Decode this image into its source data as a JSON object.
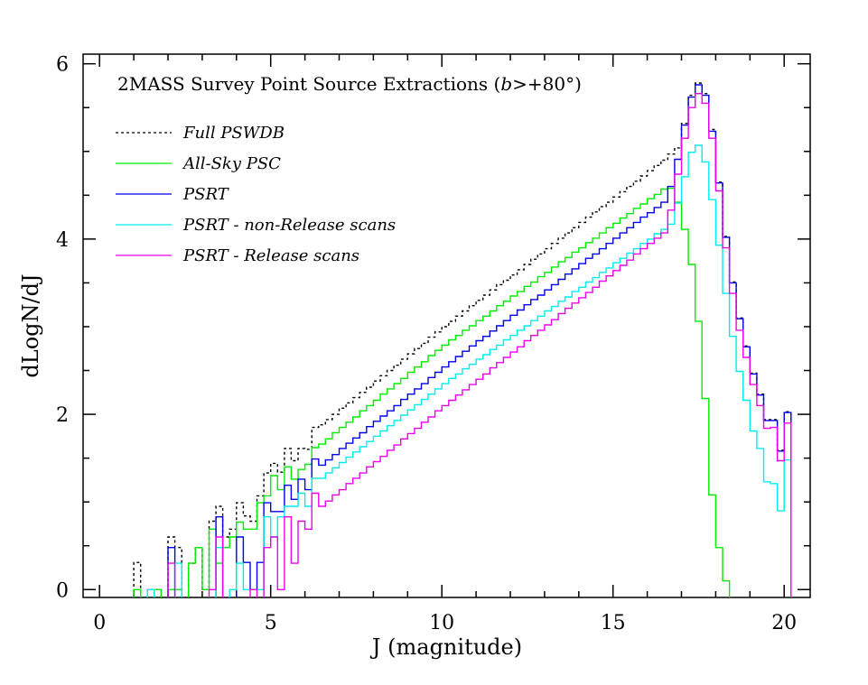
{
  "chart_data": {
    "type": "line",
    "style": "step-histogram",
    "title_prefix": "2MASS Survey Point Source Extractions (",
    "title_var": "b",
    "title_suffix": ">+80°)",
    "xlabel": "J (magnitude)",
    "ylabel": "dLogN/dJ",
    "xlim": [
      -0.48,
      20.76
    ],
    "ylim": [
      -0.09,
      6.11
    ],
    "xticks": [
      "0",
      "5",
      "10",
      "15",
      "20"
    ],
    "yticks": [
      "0",
      "2",
      "4",
      "6"
    ],
    "x_minor_step": 1,
    "y_minor_step": 0.5,
    "legend_position": "top-left",
    "bin_start": 1.0,
    "bin_width": 0.2,
    "series": [
      {
        "name": "Full PSWDB",
        "color": "#000000",
        "dashed": true,
        "values": [
          0.31,
          null,
          0,
          0,
          null,
          0.6,
          0.48,
          null,
          0.3,
          0.48,
          0,
          0.78,
          0.95,
          0.6,
          0.69,
          0.99,
          0.84,
          0.78,
          1.07,
          1.33,
          1.44,
          1.34,
          1.61,
          1.47,
          1.61,
          1.6,
          1.85,
          1.88,
          1.94,
          2.0,
          2.07,
          2.13,
          2.19,
          2.25,
          2.31,
          2.38,
          2.44,
          2.5,
          2.56,
          2.63,
          2.69,
          2.75,
          2.81,
          2.88,
          2.94,
          3.0,
          3.06,
          3.12,
          3.18,
          3.24,
          3.3,
          3.36,
          3.42,
          3.48,
          3.53,
          3.59,
          3.65,
          3.71,
          3.77,
          3.83,
          3.89,
          3.95,
          4.01,
          4.07,
          4.13,
          4.19,
          4.25,
          4.31,
          4.37,
          4.42,
          4.48,
          4.54,
          4.6,
          4.66,
          4.72,
          4.78,
          4.84,
          4.9,
          4.97,
          5.04,
          5.32,
          5.64,
          5.78,
          5.66,
          5.25,
          4.65,
          4.03,
          3.51,
          3.1,
          2.78,
          2.47,
          2.23,
          1.94,
          1.94,
          1.59,
          2.03
        ]
      },
      {
        "name": "All-Sky PSC",
        "color": "#00ee00",
        "dashed": false,
        "values": [
          0,
          null,
          null,
          0,
          null,
          0,
          0,
          null,
          0.3,
          0.48,
          0,
          0.69,
          0.3,
          0.48,
          0.6,
          0.77,
          0.69,
          0.69,
          0.99,
          1.07,
          1.3,
          1.14,
          1.4,
          1.26,
          1.37,
          1.43,
          1.62,
          1.66,
          1.72,
          1.79,
          1.85,
          1.91,
          1.97,
          2.04,
          2.1,
          2.16,
          2.23,
          2.29,
          2.35,
          2.41,
          2.48,
          2.54,
          2.6,
          2.67,
          2.73,
          2.79,
          2.85,
          2.9,
          2.96,
          3.01,
          3.07,
          3.12,
          3.18,
          3.24,
          3.29,
          3.35,
          3.4,
          3.46,
          3.51,
          3.57,
          3.62,
          3.68,
          3.74,
          3.79,
          3.85,
          3.9,
          3.96,
          4.01,
          4.07,
          4.13,
          4.18,
          4.24,
          4.29,
          4.35,
          4.4,
          4.46,
          4.51,
          4.57,
          4.58,
          4.42,
          4.11,
          3.71,
          3.06,
          2.18,
          1.08,
          0.48,
          0.1,
          null,
          null,
          null,
          null,
          null,
          null,
          null,
          null,
          null
        ]
      },
      {
        "name": "PSRT",
        "color": "#0000ee",
        "dashed": false,
        "values": [
          null,
          null,
          null,
          null,
          null,
          0.48,
          null,
          null,
          null,
          null,
          null,
          null,
          0.83,
          null,
          null,
          0.6,
          0.31,
          0,
          0.31,
          0.99,
          0.89,
          0.89,
          1.19,
          1.03,
          1.26,
          1.14,
          1.49,
          1.42,
          1.48,
          1.54,
          1.61,
          1.67,
          1.73,
          1.79,
          1.86,
          1.92,
          1.98,
          2.04,
          2.1,
          2.17,
          2.23,
          2.29,
          2.35,
          2.42,
          2.48,
          2.54,
          2.6,
          2.66,
          2.72,
          2.78,
          2.84,
          2.89,
          2.95,
          3.01,
          3.07,
          3.13,
          3.19,
          3.25,
          3.31,
          3.36,
          3.42,
          3.48,
          3.54,
          3.6,
          3.66,
          3.72,
          3.78,
          3.83,
          3.89,
          3.95,
          4.01,
          4.07,
          4.13,
          4.19,
          4.25,
          4.3,
          4.36,
          4.42,
          4.6,
          4.91,
          5.3,
          5.62,
          5.76,
          5.64,
          5.23,
          4.64,
          4.02,
          3.5,
          3.09,
          2.77,
          2.46,
          2.22,
          1.93,
          1.93,
          1.58,
          2.02
        ]
      },
      {
        "name": "PSRT - non-Release scans",
        "color": "#00eeee",
        "dashed": false,
        "values": [
          null,
          null,
          0,
          null,
          null,
          null,
          0.3,
          null,
          null,
          null,
          null,
          null,
          0.48,
          null,
          0,
          0.3,
          0,
          0,
          0,
          0.83,
          0.6,
          0.83,
          0.95,
          0.95,
          1.1,
          0.95,
          1.27,
          1.27,
          1.33,
          1.39,
          1.45,
          1.51,
          1.57,
          1.63,
          1.69,
          1.75,
          1.81,
          1.87,
          1.93,
          1.99,
          2.05,
          2.11,
          2.17,
          2.23,
          2.29,
          2.35,
          2.41,
          2.46,
          2.52,
          2.57,
          2.63,
          2.68,
          2.74,
          2.79,
          2.85,
          2.9,
          2.96,
          3.01,
          3.07,
          3.12,
          3.18,
          3.23,
          3.29,
          3.34,
          3.4,
          3.45,
          3.51,
          3.56,
          3.62,
          3.67,
          3.73,
          3.78,
          3.84,
          3.89,
          3.95,
          4.0,
          4.06,
          4.11,
          4.17,
          4.41,
          4.71,
          4.99,
          5.07,
          4.88,
          4.45,
          3.93,
          3.38,
          2.89,
          2.49,
          2.16,
          1.81,
          1.61,
          1.23,
          1.21,
          0.9,
          1.48
        ]
      },
      {
        "name": "PSRT - Release scans",
        "color": "#ee00ee",
        "dashed": false,
        "values": [
          null,
          null,
          null,
          null,
          null,
          0.3,
          null,
          null,
          null,
          null,
          null,
          0,
          0.6,
          null,
          null,
          null,
          null,
          0,
          null,
          0.48,
          0.6,
          0,
          0.83,
          0.3,
          0.78,
          0.69,
          1.1,
          0.95,
          1.01,
          1.08,
          1.14,
          1.21,
          1.27,
          1.33,
          1.4,
          1.46,
          1.52,
          1.59,
          1.65,
          1.72,
          1.78,
          1.84,
          1.91,
          1.97,
          2.04,
          2.1,
          2.16,
          2.22,
          2.28,
          2.34,
          2.4,
          2.46,
          2.53,
          2.59,
          2.65,
          2.71,
          2.77,
          2.84,
          2.9,
          2.96,
          3.02,
          3.08,
          3.15,
          3.21,
          3.27,
          3.33,
          3.39,
          3.45,
          3.52,
          3.58,
          3.64,
          3.7,
          3.76,
          3.83,
          3.89,
          3.95,
          4.01,
          4.07,
          4.33,
          4.74,
          5.15,
          5.5,
          5.66,
          5.55,
          5.15,
          4.55,
          3.9,
          3.38,
          2.96,
          2.65,
          2.34,
          2.1,
          1.84,
          1.85,
          1.47,
          1.9
        ]
      }
    ]
  }
}
